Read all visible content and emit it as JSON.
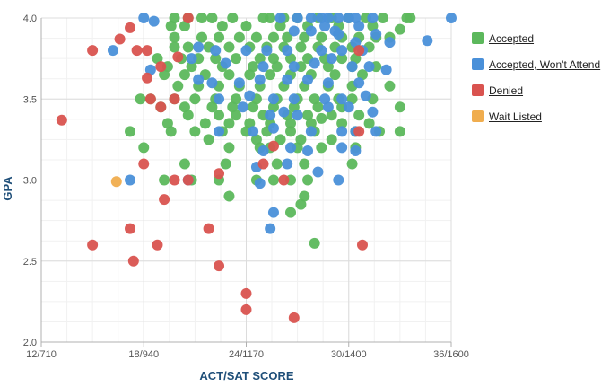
{
  "chart_data": {
    "type": "scatter",
    "title": "",
    "xlabel": "ACT/SAT SCORE",
    "ylabel": "GPA",
    "xlim": [
      12,
      36
    ],
    "ylim": [
      2.0,
      4.0
    ],
    "x_ticks": [
      {
        "value": 12,
        "label": "12/710"
      },
      {
        "value": 18,
        "label": "18/940"
      },
      {
        "value": 24,
        "label": "24/1170"
      },
      {
        "value": 30,
        "label": "30/1400"
      },
      {
        "value": 36,
        "label": "36/1600"
      }
    ],
    "y_ticks": [
      {
        "value": 2.0,
        "label": "2.0"
      },
      {
        "value": 2.5,
        "label": "2.5"
      },
      {
        "value": 3.0,
        "label": "3.0"
      },
      {
        "value": 3.5,
        "label": "3.5"
      },
      {
        "value": 4.0,
        "label": "4.0"
      }
    ],
    "grid": true,
    "legend_position": "right",
    "series": [
      {
        "name": "Accepted",
        "color": "#5cb85c",
        "points": [
          [
            19.8,
            4.0
          ],
          [
            20.6,
            4.0
          ],
          [
            21.4,
            4.0
          ],
          [
            22.0,
            4.0
          ],
          [
            23.2,
            4.0
          ],
          [
            25.0,
            4.0
          ],
          [
            25.4,
            4.0
          ],
          [
            26.2,
            4.0
          ],
          [
            27.0,
            4.0
          ],
          [
            28.2,
            4.0
          ],
          [
            29.0,
            4.0
          ],
          [
            30.0,
            4.0
          ],
          [
            31.0,
            4.0
          ],
          [
            32.0,
            4.0
          ],
          [
            33.4,
            4.0
          ],
          [
            33.6,
            4.0
          ],
          [
            19.6,
            3.95
          ],
          [
            20.4,
            3.95
          ],
          [
            22.6,
            3.95
          ],
          [
            24.0,
            3.95
          ],
          [
            26.0,
            3.95
          ],
          [
            27.6,
            3.95
          ],
          [
            29.4,
            3.95
          ],
          [
            31.4,
            3.95
          ],
          [
            33.0,
            3.93
          ],
          [
            19.8,
            3.88
          ],
          [
            21.4,
            3.88
          ],
          [
            22.4,
            3.88
          ],
          [
            23.6,
            3.88
          ],
          [
            24.6,
            3.88
          ],
          [
            25.6,
            3.88
          ],
          [
            26.4,
            3.88
          ],
          [
            27.4,
            3.88
          ],
          [
            28.4,
            3.88
          ],
          [
            29.6,
            3.88
          ],
          [
            30.6,
            3.88
          ],
          [
            31.6,
            3.88
          ],
          [
            32.4,
            3.88
          ],
          [
            19.8,
            3.82
          ],
          [
            20.6,
            3.82
          ],
          [
            21.8,
            3.82
          ],
          [
            23.0,
            3.82
          ],
          [
            24.2,
            3.82
          ],
          [
            25.2,
            3.82
          ],
          [
            26.2,
            3.82
          ],
          [
            27.2,
            3.82
          ],
          [
            28.2,
            3.82
          ],
          [
            29.2,
            3.82
          ],
          [
            30.2,
            3.82
          ],
          [
            31.2,
            3.82
          ],
          [
            18.8,
            3.75
          ],
          [
            20.2,
            3.75
          ],
          [
            21.2,
            3.75
          ],
          [
            22.2,
            3.75
          ],
          [
            23.4,
            3.75
          ],
          [
            24.8,
            3.75
          ],
          [
            25.6,
            3.75
          ],
          [
            26.6,
            3.75
          ],
          [
            27.6,
            3.75
          ],
          [
            28.6,
            3.75
          ],
          [
            29.6,
            3.75
          ],
          [
            30.4,
            3.75
          ],
          [
            19.4,
            3.7
          ],
          [
            20.8,
            3.7
          ],
          [
            22.6,
            3.7
          ],
          [
            24.4,
            3.7
          ],
          [
            25.8,
            3.7
          ],
          [
            27.2,
            3.7
          ],
          [
            28.8,
            3.7
          ],
          [
            30.2,
            3.7
          ],
          [
            31.6,
            3.7
          ],
          [
            19.2,
            3.65
          ],
          [
            20.4,
            3.65
          ],
          [
            21.6,
            3.65
          ],
          [
            23.0,
            3.65
          ],
          [
            24.2,
            3.65
          ],
          [
            25.4,
            3.65
          ],
          [
            26.6,
            3.65
          ],
          [
            27.8,
            3.65
          ],
          [
            29.2,
            3.65
          ],
          [
            30.8,
            3.65
          ],
          [
            20.0,
            3.58
          ],
          [
            21.2,
            3.58
          ],
          [
            22.4,
            3.58
          ],
          [
            23.6,
            3.58
          ],
          [
            24.8,
            3.58
          ],
          [
            26.2,
            3.58
          ],
          [
            27.4,
            3.58
          ],
          [
            28.8,
            3.58
          ],
          [
            30.2,
            3.58
          ],
          [
            32.4,
            3.58
          ],
          [
            17.8,
            3.5
          ],
          [
            18.4,
            3.5
          ],
          [
            19.8,
            3.5
          ],
          [
            21.0,
            3.5
          ],
          [
            22.2,
            3.5
          ],
          [
            23.4,
            3.5
          ],
          [
            24.6,
            3.5
          ],
          [
            25.8,
            3.5
          ],
          [
            27.0,
            3.5
          ],
          [
            28.0,
            3.5
          ],
          [
            29.4,
            3.5
          ],
          [
            30.2,
            3.5
          ],
          [
            31.4,
            3.5
          ],
          [
            19.0,
            3.45
          ],
          [
            20.4,
            3.45
          ],
          [
            22.0,
            3.45
          ],
          [
            23.2,
            3.45
          ],
          [
            24.4,
            3.45
          ],
          [
            25.6,
            3.45
          ],
          [
            26.8,
            3.45
          ],
          [
            28.2,
            3.45
          ],
          [
            29.6,
            3.45
          ],
          [
            20.6,
            3.4
          ],
          [
            22.4,
            3.4
          ],
          [
            23.4,
            3.4
          ],
          [
            25.0,
            3.4
          ],
          [
            26.4,
            3.4
          ],
          [
            27.6,
            3.4
          ],
          [
            29.0,
            3.4
          ],
          [
            30.6,
            3.4
          ],
          [
            33.0,
            3.45
          ],
          [
            19.4,
            3.35
          ],
          [
            21.6,
            3.35
          ],
          [
            23.0,
            3.35
          ],
          [
            24.2,
            3.35
          ],
          [
            25.4,
            3.35
          ],
          [
            26.6,
            3.35
          ],
          [
            27.8,
            3.35
          ],
          [
            28.4,
            3.38
          ],
          [
            29.6,
            3.35
          ],
          [
            31.2,
            3.35
          ],
          [
            17.2,
            3.3
          ],
          [
            19.6,
            3.3
          ],
          [
            21.0,
            3.3
          ],
          [
            22.6,
            3.3
          ],
          [
            24.0,
            3.3
          ],
          [
            25.2,
            3.3
          ],
          [
            26.6,
            3.3
          ],
          [
            28.0,
            3.3
          ],
          [
            30.4,
            3.3
          ],
          [
            31.8,
            3.3
          ],
          [
            33.0,
            3.3
          ],
          [
            21.8,
            3.25
          ],
          [
            24.6,
            3.25
          ],
          [
            26.0,
            3.25
          ],
          [
            27.2,
            3.25
          ],
          [
            29.0,
            3.25
          ],
          [
            18.0,
            3.2
          ],
          [
            23.0,
            3.2
          ],
          [
            24.8,
            3.2
          ],
          [
            25.4,
            3.2
          ],
          [
            27.0,
            3.2
          ],
          [
            28.4,
            3.2
          ],
          [
            30.4,
            3.2
          ],
          [
            20.4,
            3.1
          ],
          [
            22.8,
            3.1
          ],
          [
            25.8,
            3.1
          ],
          [
            27.4,
            3.1
          ],
          [
            30.2,
            3.1
          ],
          [
            19.2,
            3.0
          ],
          [
            20.8,
            3.0
          ],
          [
            22.4,
            3.0
          ],
          [
            24.6,
            3.0
          ],
          [
            25.6,
            3.0
          ],
          [
            26.6,
            3.0
          ],
          [
            27.6,
            3.0
          ],
          [
            23.0,
            2.9
          ],
          [
            27.4,
            2.9
          ],
          [
            27.2,
            2.85
          ],
          [
            26.6,
            2.8
          ],
          [
            28.0,
            2.61
          ]
        ]
      },
      {
        "name": "Accepted, Won't Attend",
        "color": "#4a90d9",
        "points": [
          [
            18.0,
            4.0
          ],
          [
            18.6,
            3.98
          ],
          [
            26.0,
            4.0
          ],
          [
            27.0,
            4.0
          ],
          [
            27.8,
            4.0
          ],
          [
            28.4,
            4.0
          ],
          [
            28.8,
            4.0
          ],
          [
            29.4,
            4.0
          ],
          [
            30.0,
            4.0
          ],
          [
            30.4,
            4.0
          ],
          [
            31.4,
            4.0
          ],
          [
            36.0,
            4.0
          ],
          [
            28.6,
            3.95
          ],
          [
            30.6,
            3.95
          ],
          [
            26.8,
            3.92
          ],
          [
            27.8,
            3.92
          ],
          [
            29.2,
            3.92
          ],
          [
            30.4,
            3.85
          ],
          [
            29.4,
            3.9
          ],
          [
            31.6,
            3.9
          ],
          [
            34.6,
            3.86
          ],
          [
            16.2,
            3.8
          ],
          [
            21.2,
            3.82
          ],
          [
            22.2,
            3.8
          ],
          [
            24.0,
            3.8
          ],
          [
            25.2,
            3.8
          ],
          [
            26.4,
            3.8
          ],
          [
            28.4,
            3.8
          ],
          [
            29.6,
            3.8
          ],
          [
            30.8,
            3.8
          ],
          [
            32.4,
            3.85
          ],
          [
            20.8,
            3.75
          ],
          [
            22.8,
            3.72
          ],
          [
            25.0,
            3.7
          ],
          [
            26.8,
            3.7
          ],
          [
            28.0,
            3.72
          ],
          [
            29.0,
            3.75
          ],
          [
            30.2,
            3.7
          ],
          [
            31.2,
            3.7
          ],
          [
            18.4,
            3.68
          ],
          [
            21.2,
            3.62
          ],
          [
            22.0,
            3.6
          ],
          [
            23.6,
            3.6
          ],
          [
            24.8,
            3.62
          ],
          [
            26.4,
            3.62
          ],
          [
            27.6,
            3.62
          ],
          [
            28.8,
            3.6
          ],
          [
            30.6,
            3.6
          ],
          [
            32.2,
            3.68
          ],
          [
            22.4,
            3.5
          ],
          [
            24.2,
            3.52
          ],
          [
            25.6,
            3.5
          ],
          [
            26.8,
            3.5
          ],
          [
            28.6,
            3.5
          ],
          [
            29.6,
            3.5
          ],
          [
            31.0,
            3.52
          ],
          [
            23.8,
            3.45
          ],
          [
            25.4,
            3.4
          ],
          [
            26.2,
            3.42
          ],
          [
            27.0,
            3.4
          ],
          [
            28.8,
            3.45
          ],
          [
            30.0,
            3.45
          ],
          [
            31.4,
            3.42
          ],
          [
            22.4,
            3.3
          ],
          [
            24.4,
            3.3
          ],
          [
            25.6,
            3.32
          ],
          [
            27.8,
            3.3
          ],
          [
            29.6,
            3.3
          ],
          [
            30.4,
            3.3
          ],
          [
            31.6,
            3.3
          ],
          [
            25.0,
            3.18
          ],
          [
            26.6,
            3.2
          ],
          [
            27.6,
            3.18
          ],
          [
            29.6,
            3.2
          ],
          [
            30.4,
            3.18
          ],
          [
            24.6,
            3.08
          ],
          [
            26.4,
            3.1
          ],
          [
            28.2,
            3.05
          ],
          [
            20.6,
            3.0
          ],
          [
            24.8,
            2.98
          ],
          [
            17.2,
            3.0
          ],
          [
            29.4,
            3.0
          ],
          [
            25.6,
            2.8
          ],
          [
            25.4,
            2.7
          ]
        ]
      },
      {
        "name": "Denied",
        "color": "#d9534f",
        "points": [
          [
            13.2,
            3.37
          ],
          [
            15.0,
            3.8
          ],
          [
            16.6,
            3.87
          ],
          [
            17.2,
            3.94
          ],
          [
            17.6,
            3.8
          ],
          [
            18.2,
            3.8
          ],
          [
            18.2,
            3.63
          ],
          [
            18.4,
            3.5
          ],
          [
            19.0,
            3.45
          ],
          [
            19.0,
            3.7
          ],
          [
            19.8,
            3.5
          ],
          [
            20.0,
            3.76
          ],
          [
            20.6,
            4.0
          ],
          [
            19.8,
            3.0
          ],
          [
            20.6,
            3.0
          ],
          [
            18.0,
            3.1
          ],
          [
            19.2,
            2.88
          ],
          [
            17.2,
            2.7
          ],
          [
            17.4,
            2.5
          ],
          [
            18.8,
            2.6
          ],
          [
            15.0,
            2.6
          ],
          [
            21.8,
            2.7
          ],
          [
            22.4,
            2.47
          ],
          [
            22.4,
            3.04
          ],
          [
            24.0,
            2.3
          ],
          [
            24.0,
            2.2
          ],
          [
            25.0,
            3.1
          ],
          [
            25.6,
            3.21
          ],
          [
            26.2,
            3.0
          ],
          [
            26.8,
            2.15
          ],
          [
            30.6,
            3.3
          ],
          [
            30.6,
            3.8
          ],
          [
            30.8,
            2.6
          ]
        ]
      },
      {
        "name": "Wait Listed",
        "color": "#f0ad4e",
        "points": [
          [
            16.4,
            2.99
          ]
        ]
      }
    ]
  }
}
